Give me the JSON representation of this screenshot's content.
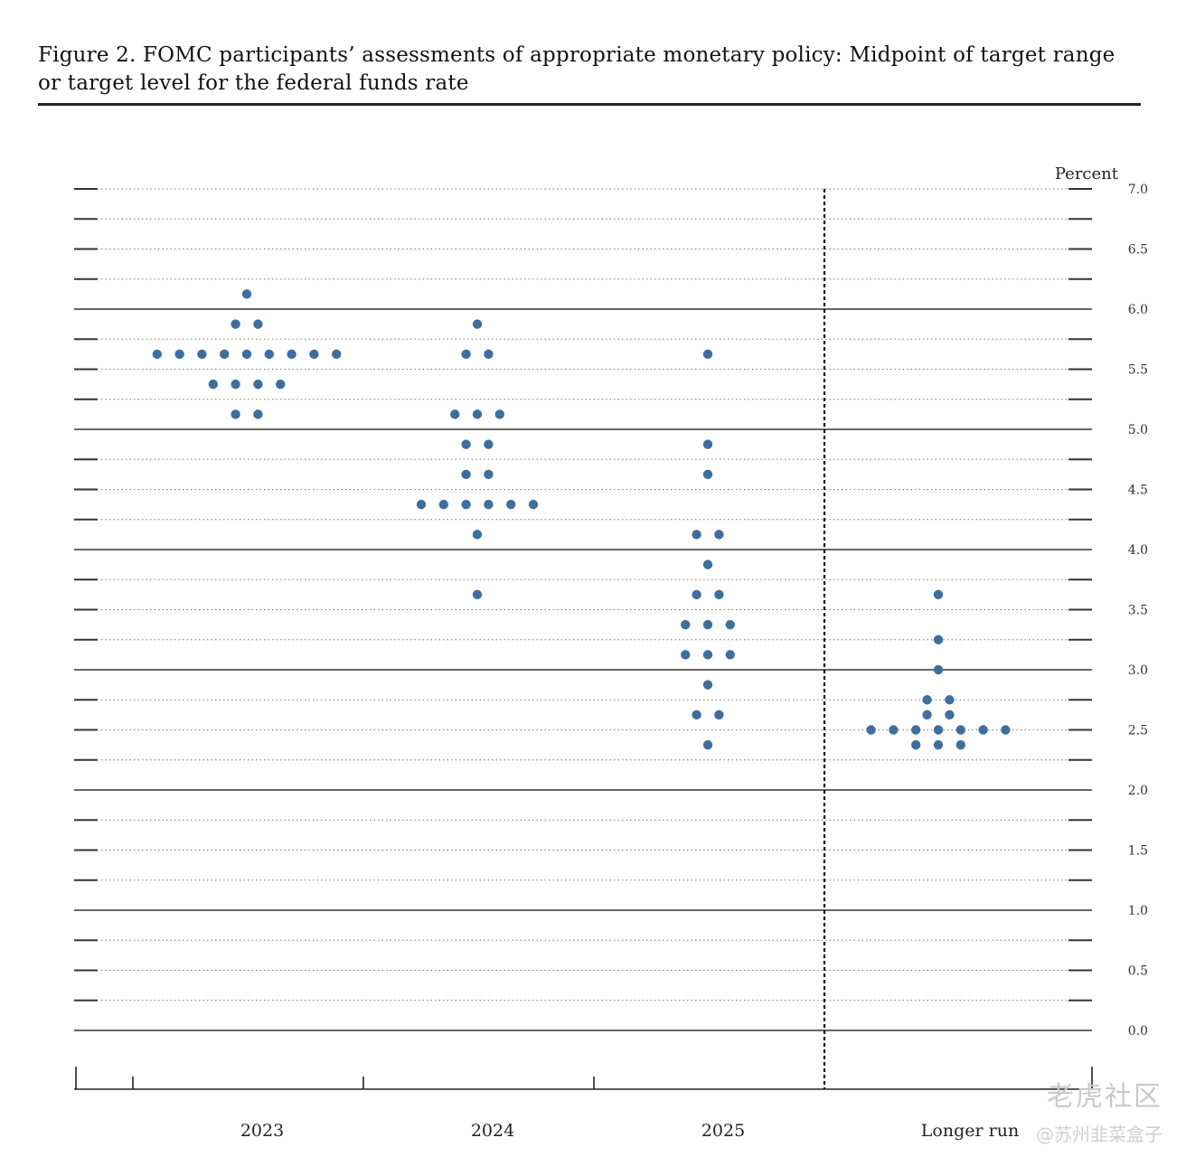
{
  "figure_title": "Figure 2.  FOMC participants’ assessments of appropriate monetary policy:  Midpoint of target range or target level for the federal funds rate",
  "chart_data": {
    "type": "scatter",
    "title": "Figure 2.  FOMC participants’ assessments of appropriate monetary policy:  Midpoint of target range or target level for the federal funds rate",
    "ylabel": "Percent",
    "ylim": [
      0,
      7
    ],
    "yticks": [
      "0.0",
      "0.5",
      "1.0",
      "1.5",
      "2.0",
      "2.5",
      "3.0",
      "3.5",
      "4.0",
      "4.5",
      "5.0",
      "5.5",
      "6.0",
      "6.5",
      "7.0"
    ],
    "grid": "dotted at every 0.25, solid at every whole percent",
    "categories": [
      "2023",
      "2024",
      "2025",
      "Longer run"
    ],
    "dot_color": "#3d6f9e",
    "series": [
      {
        "category": "2023",
        "points": [
          {
            "y": 6.125,
            "count": 1
          },
          {
            "y": 5.875,
            "count": 2
          },
          {
            "y": 5.625,
            "count": 9
          },
          {
            "y": 5.375,
            "count": 4
          },
          {
            "y": 5.125,
            "count": 2
          }
        ]
      },
      {
        "category": "2024",
        "points": [
          {
            "y": 5.875,
            "count": 1
          },
          {
            "y": 5.625,
            "count": 2
          },
          {
            "y": 5.125,
            "count": 3
          },
          {
            "y": 4.875,
            "count": 2
          },
          {
            "y": 4.625,
            "count": 2
          },
          {
            "y": 4.375,
            "count": 6
          },
          {
            "y": 4.125,
            "count": 1
          },
          {
            "y": 3.625,
            "count": 1
          }
        ]
      },
      {
        "category": "2025",
        "points": [
          {
            "y": 5.625,
            "count": 1
          },
          {
            "y": 4.875,
            "count": 1
          },
          {
            "y": 4.625,
            "count": 1
          },
          {
            "y": 4.125,
            "count": 2
          },
          {
            "y": 3.875,
            "count": 1
          },
          {
            "y": 3.625,
            "count": 2
          },
          {
            "y": 3.375,
            "count": 3
          },
          {
            "y": 3.125,
            "count": 3
          },
          {
            "y": 2.875,
            "count": 1
          },
          {
            "y": 2.625,
            "count": 2
          },
          {
            "y": 2.375,
            "count": 1
          }
        ]
      },
      {
        "category": "Longer run",
        "points": [
          {
            "y": 3.625,
            "count": 1
          },
          {
            "y": 3.25,
            "count": 1
          },
          {
            "y": 3.0,
            "count": 1
          },
          {
            "y": 2.75,
            "count": 2
          },
          {
            "y": 2.625,
            "count": 2
          },
          {
            "y": 2.5,
            "count": 7
          },
          {
            "y": 2.375,
            "count": 3
          }
        ]
      }
    ]
  },
  "watermark": {
    "logo_text": "老虎社区",
    "handle": "@苏州韭菜盒子"
  }
}
